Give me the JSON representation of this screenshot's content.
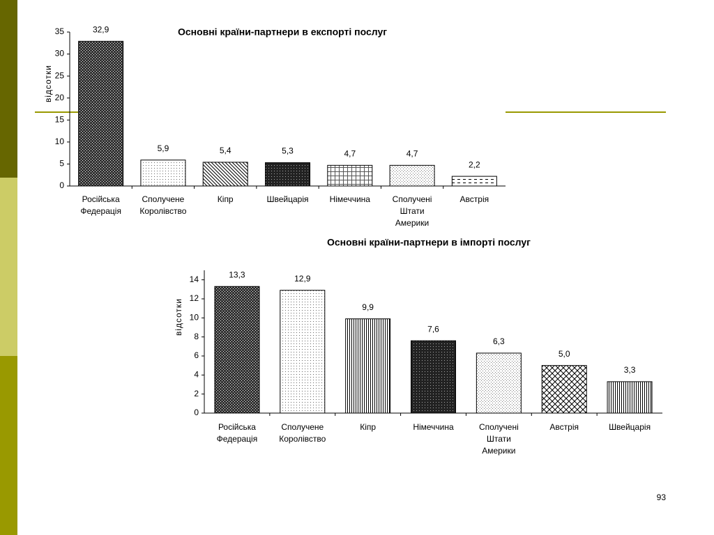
{
  "chart_data": [
    {
      "type": "bar",
      "title": "Основні країни-партнери в експорті послуг",
      "y_label": "відсотки",
      "categories": [
        "Російська Федерація",
        "Сполучене Королівство",
        "Кіпр",
        "Швейцарія",
        "Німеччина",
        "Сполучені Штати Америки",
        "Австрія"
      ],
      "values": [
        32.9,
        5.9,
        5.4,
        5.3,
        4.7,
        4.7,
        2.2
      ],
      "value_labels": [
        "32,9",
        "5,9",
        "5,4",
        "5,3",
        "4,7",
        "4,7",
        "2,2"
      ],
      "color": "#000000",
      "ylim": [
        0,
        35
      ],
      "yticks": [
        0,
        5,
        10,
        15,
        20,
        25,
        30,
        35
      ],
      "grid": false
    },
    {
      "type": "bar",
      "title": "Основні країни-партнери в імпорті послуг",
      "y_label": "відсотки",
      "categories": [
        "Російська Федерація",
        "Сполучене Королівство",
        "Кіпр",
        "Німеччина",
        "Сполучені Штати Америки",
        "Австрія",
        "Швейцарія"
      ],
      "values": [
        13.3,
        12.9,
        9.9,
        7.6,
        6.3,
        5.0,
        3.3
      ],
      "value_labels": [
        "13,3",
        "12,9",
        "9,9",
        "7,6",
        "6,3",
        "5,0",
        "3,3"
      ],
      "color": "#000000",
      "ylim": [
        0,
        15
      ],
      "yticks": [
        0,
        2,
        4,
        6,
        8,
        10,
        12,
        14
      ],
      "grid": false
    }
  ],
  "page_number": "93"
}
